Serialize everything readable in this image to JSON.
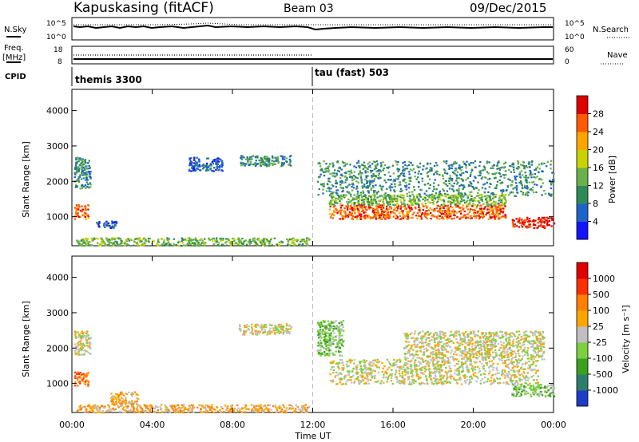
{
  "header": {
    "station": "Kapuskasing (fitACF)",
    "beam": "Beam 03",
    "date": "09/Dec/2015"
  },
  "status_panel": {
    "nsky_label": "N.Sky",
    "nsearch_label": "N.Search",
    "freq_label_1": "Freq.",
    "freq_label_2": "[MHz]",
    "nave_label": "Nave",
    "cpid_label": "CPID",
    "left_ticks_count": [
      "10^5",
      "10^0"
    ],
    "right_ticks_count": [
      "10^5",
      "10^0"
    ],
    "left_ticks_freq": [
      "18",
      "8"
    ],
    "right_ticks_nave": [
      "60",
      "0"
    ],
    "cpid_segments": [
      {
        "label": "themis 3300",
        "start_hour": 0,
        "end_hour": 12
      },
      {
        "label": "tau (fast) 503",
        "start_hour": 12,
        "end_hour": 24
      }
    ]
  },
  "chart_data": [
    {
      "type": "heatmap",
      "title": "",
      "xlabel": "Time UT",
      "ylabel": "Slant Range [km]",
      "xlim": [
        0,
        24
      ],
      "ylim": [
        180,
        4600
      ],
      "x_ticks": [
        0,
        4,
        8,
        12,
        16,
        20,
        24
      ],
      "x_tick_labels": [
        "00:00",
        "04:00",
        "08:00",
        "12:00",
        "16:00",
        "20:00",
        "00:00"
      ],
      "y_ticks": [
        1000,
        2000,
        3000,
        4000
      ],
      "y_tick_labels": [
        "1000",
        "2000",
        "3000",
        "4000"
      ],
      "colorbar": {
        "label": "Power [dB]",
        "ticks": [
          "4",
          "8",
          "12",
          "16",
          "20",
          "24",
          "28"
        ],
        "colors": [
          "#1414ff",
          "#1e64c8",
          "#2e8b57",
          "#6ab04c",
          "#c8d400",
          "#ffa500",
          "#ff5a00",
          "#e00000"
        ]
      },
      "regions": [
        {
          "t0": 0.1,
          "t1": 0.9,
          "r0": 1800,
          "r1": 2700,
          "level": 2
        },
        {
          "t0": 0.1,
          "t1": 0.8,
          "r0": 950,
          "r1": 1350,
          "level": 6
        },
        {
          "t0": 1.2,
          "t1": 2.2,
          "r0": 700,
          "r1": 900,
          "level": 1
        },
        {
          "t0": 0.2,
          "t1": 11.8,
          "r0": 200,
          "r1": 420,
          "level": 3
        },
        {
          "t0": 5.8,
          "t1": 7.5,
          "r0": 2300,
          "r1": 2700,
          "level": 1
        },
        {
          "t0": 8.3,
          "t1": 10.9,
          "r0": 2450,
          "r1": 2750,
          "level": 2
        },
        {
          "t0": 12.2,
          "t1": 24,
          "r0": 1600,
          "r1": 2600,
          "level": 2
        },
        {
          "t0": 12.8,
          "t1": 21.6,
          "r0": 950,
          "r1": 1350,
          "level": 6
        },
        {
          "t0": 12.8,
          "t1": 21.6,
          "r0": 1350,
          "r1": 1650,
          "level": 3
        },
        {
          "t0": 21.9,
          "t1": 24,
          "r0": 700,
          "r1": 1000,
          "level": 7
        }
      ],
      "dividers": [
        12
      ]
    },
    {
      "type": "heatmap",
      "title": "",
      "xlabel": "Time UT",
      "ylabel": "Slant Range [km]",
      "xlim": [
        0,
        24
      ],
      "ylim": [
        180,
        4600
      ],
      "x_ticks": [
        0,
        4,
        8,
        12,
        16,
        20,
        24
      ],
      "x_tick_labels": [
        "00:00",
        "04:00",
        "08:00",
        "12:00",
        "16:00",
        "20:00",
        "00:00"
      ],
      "y_ticks": [
        1000,
        2000,
        3000,
        4000
      ],
      "y_tick_labels": [
        "1000",
        "2000",
        "3000",
        "4000"
      ],
      "colorbar": {
        "label": "Velocity [m s⁻¹]",
        "ticks": [
          "1000",
          "500",
          "100",
          "25",
          "-25",
          "-100",
          "-500",
          "-1000"
        ],
        "colors": [
          "#1e3cc8",
          "#2e7d6b",
          "#3aa020",
          "#7dd040",
          "#c0c0c0",
          "#ffa500",
          "#ff8000",
          "#ff3000",
          "#e00000"
        ]
      },
      "regions": [
        {
          "t0": 0.1,
          "t1": 0.9,
          "r0": 1800,
          "r1": 2500,
          "level": 4
        },
        {
          "t0": 0.1,
          "t1": 0.8,
          "r0": 950,
          "r1": 1350,
          "level": 6
        },
        {
          "t0": 1.9,
          "t1": 3.3,
          "r0": 400,
          "r1": 780,
          "level": 5
        },
        {
          "t0": 0.2,
          "t1": 11.8,
          "r0": 200,
          "r1": 420,
          "level": 5
        },
        {
          "t0": 8.3,
          "t1": 10.9,
          "r0": 2400,
          "r1": 2700,
          "level": 4
        },
        {
          "t0": 12.2,
          "t1": 13.5,
          "r0": 1800,
          "r1": 2800,
          "level": 3
        },
        {
          "t0": 12.8,
          "t1": 23.2,
          "r0": 1000,
          "r1": 1700,
          "level": 4
        },
        {
          "t0": 16.5,
          "t1": 23.5,
          "r0": 1700,
          "r1": 2500,
          "level": 4
        },
        {
          "t0": 21.9,
          "t1": 24,
          "r0": 650,
          "r1": 1000,
          "level": 3
        }
      ],
      "dividers": [
        12
      ]
    }
  ]
}
